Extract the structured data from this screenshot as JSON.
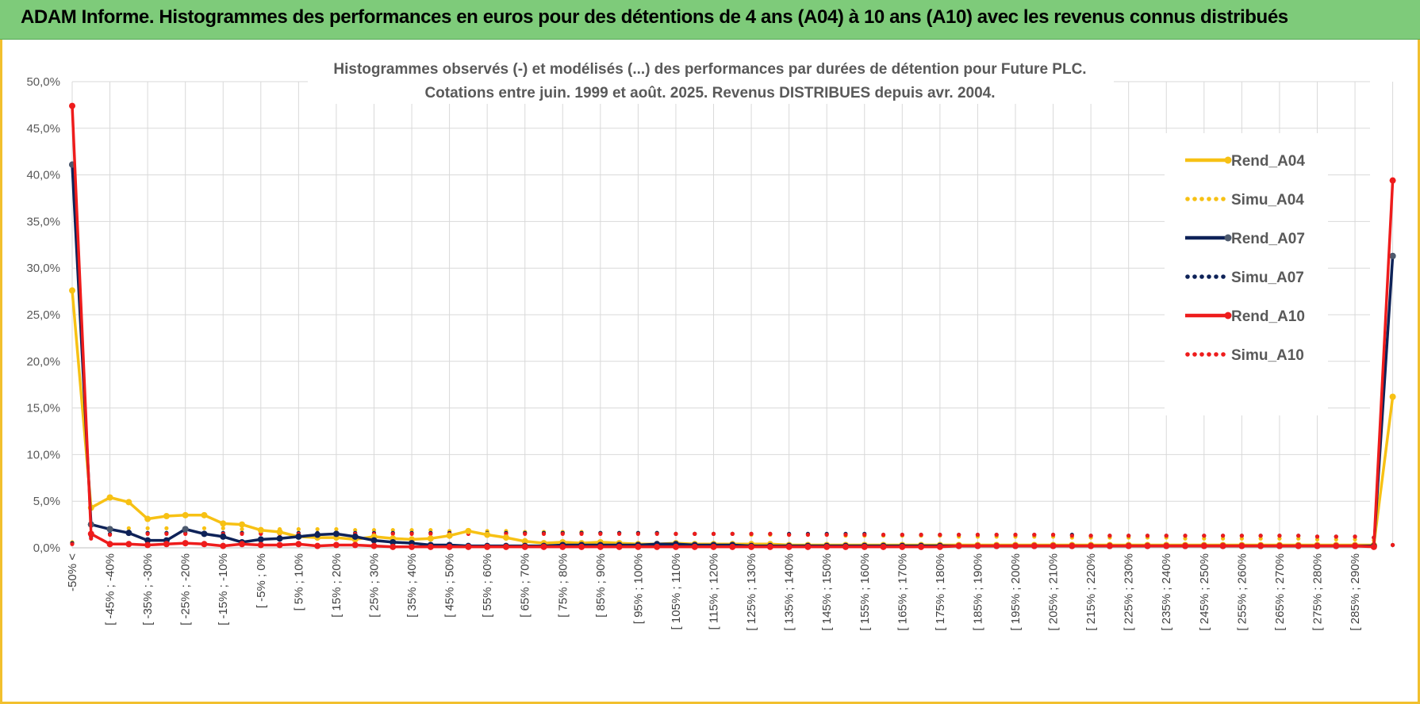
{
  "header": {
    "title": "ADAM Informe. Histogrammes des performances en euros pour des détentions de 4 ans (A04) à 10 ans (A10) avec les revenus connus distribués"
  },
  "chart_data": {
    "type": "line",
    "title_line1": "Histogrammes observés (-) et modélisés (...) des performances par durées de détention pour Future PLC.",
    "title_line2": "Cotations entre juin. 1999 et août. 2025. Revenus DISTRIBUES depuis avr. 2004.",
    "ylim": [
      0,
      50
    ],
    "yticks": [
      "0,0%",
      "5,0%",
      "10,0%",
      "15,0%",
      "20,0%",
      "25,0%",
      "30,0%",
      "35,0%",
      "40,0%",
      "45,0%",
      "50,0%"
    ],
    "y_unit": "%",
    "grid": true,
    "legend_position": "right",
    "x_tick_labels": [
      "-50% <",
      "[ -45% ; -40%",
      "[ -35% ; -30%",
      "[ -25% ; -20%",
      "[ -15% ; -10%",
      "[ -5% ; 0%",
      "[ 5% ; 10%",
      "[ 15% ; 20%",
      "[ 25% ; 30%",
      "[ 35% ; 40%",
      "[ 45% ; 50%",
      "[ 55% ; 60%",
      "[ 65% ; 70%",
      "[ 75% ; 80%",
      "[ 85% ; 90%",
      "[ 95% ; 100%",
      "[ 105% ; 110%",
      "[ 115% ; 120%",
      "[ 125% ; 130%",
      "[ 135% ; 140%",
      "[ 145% ; 150%",
      "[ 155% ; 160%",
      "[ 165% ; 170%",
      "[ 175% ; 180%",
      "[ 185% ; 190%",
      "[ 195% ; 200%",
      "[ 205% ; 210%",
      "[ 215% ; 220%",
      "[ 225% ; 230%",
      "[ 235% ; 240%",
      "[ 245% ; 250%",
      "[ 255% ; 260%",
      "[ 265% ; 270%",
      "[ 275% ; 280%",
      "[ 285% ; 290%"
    ],
    "series": [
      {
        "name": "Rend_A04",
        "style": "solid",
        "color": "#f7c114",
        "values": [
          27.6,
          4.3,
          5.4,
          4.9,
          3.1,
          3.4,
          3.5,
          3.5,
          2.6,
          2.5,
          1.9,
          1.7,
          1.2,
          1.1,
          1.1,
          0.9,
          1.2,
          1.0,
          0.9,
          1.0,
          1.3,
          1.8,
          1.4,
          1.1,
          0.7,
          0.5,
          0.6,
          0.5,
          0.6,
          0.5,
          0.4,
          0.4,
          0.5,
          0.4,
          0.4,
          0.4,
          0.4,
          0.4,
          0.3,
          0.3,
          0.3,
          0.3,
          0.3,
          0.3,
          0.3,
          0.3,
          0.3,
          0.3,
          0.3,
          0.3,
          0.3,
          0.3,
          0.3,
          0.3,
          0.3,
          0.3,
          0.3,
          0.3,
          0.3,
          0.3,
          0.3,
          0.3,
          0.3,
          0.3,
          0.3,
          0.3,
          0.3,
          0.3,
          0.3,
          0.3,
          16.2
        ]
      },
      {
        "name": "Simu_A04",
        "style": "dotted",
        "color": "#f7c114",
        "values": [
          0.6,
          1.6,
          2.1,
          2.1,
          2.1,
          2.1,
          2.1,
          2.1,
          2.1,
          2.0,
          2.0,
          2.0,
          2.0,
          2.0,
          2.0,
          1.9,
          1.9,
          1.9,
          1.9,
          1.9,
          1.8,
          1.8,
          1.8,
          1.8,
          1.7,
          1.7,
          1.7,
          1.7,
          1.6,
          1.6,
          1.6,
          1.6,
          1.5,
          1.5,
          1.5,
          1.5,
          1.4,
          1.4,
          1.4,
          1.4,
          1.4,
          1.3,
          1.3,
          1.3,
          1.3,
          1.3,
          1.3,
          1.2,
          1.2,
          1.2,
          1.2,
          1.2,
          1.2,
          1.1,
          1.1,
          1.1,
          1.1,
          1.1,
          1.1,
          1.0,
          1.0,
          1.0,
          1.0,
          1.0,
          1.0,
          1.0,
          0.9,
          0.9,
          0.9,
          0.8,
          0.3
        ]
      },
      {
        "name": "Rend_A07",
        "style": "solid",
        "color": "#0e2258",
        "values": [
          41.1,
          2.5,
          2.0,
          1.6,
          0.8,
          0.8,
          2.0,
          1.5,
          1.2,
          0.6,
          0.9,
          1.0,
          1.2,
          1.4,
          1.5,
          1.2,
          0.8,
          0.6,
          0.5,
          0.3,
          0.3,
          0.2,
          0.2,
          0.2,
          0.2,
          0.2,
          0.3,
          0.3,
          0.3,
          0.3,
          0.3,
          0.4,
          0.4,
          0.3,
          0.3,
          0.3,
          0.2,
          0.2,
          0.2,
          0.2,
          0.2,
          0.2,
          0.2,
          0.2,
          0.2,
          0.2,
          0.2,
          0.2,
          0.2,
          0.2,
          0.2,
          0.2,
          0.2,
          0.2,
          0.2,
          0.2,
          0.2,
          0.2,
          0.2,
          0.2,
          0.2,
          0.2,
          0.2,
          0.2,
          0.2,
          0.2,
          0.2,
          0.2,
          0.2,
          0.2,
          31.3
        ]
      },
      {
        "name": "Simu_A07",
        "style": "dotted",
        "color": "#0e2258",
        "values": [
          0.5,
          1.2,
          1.5,
          1.6,
          1.6,
          1.6,
          1.6,
          1.6,
          1.6,
          1.6,
          1.6,
          1.6,
          1.6,
          1.6,
          1.6,
          1.6,
          1.6,
          1.6,
          1.6,
          1.6,
          1.6,
          1.6,
          1.6,
          1.6,
          1.6,
          1.6,
          1.6,
          1.6,
          1.6,
          1.6,
          1.6,
          1.6,
          1.5,
          1.5,
          1.5,
          1.5,
          1.5,
          1.5,
          1.5,
          1.5,
          1.5,
          1.5,
          1.5,
          1.4,
          1.4,
          1.4,
          1.4,
          1.4,
          1.4,
          1.4,
          1.4,
          1.4,
          1.4,
          1.4,
          1.3,
          1.3,
          1.3,
          1.3,
          1.3,
          1.3,
          1.3,
          1.3,
          1.3,
          1.3,
          1.3,
          1.3,
          1.2,
          1.2,
          1.2,
          1.1,
          0.3
        ]
      },
      {
        "name": "Rend_A10",
        "style": "solid",
        "color": "#ee1c1c",
        "values": [
          47.4,
          1.5,
          0.4,
          0.4,
          0.3,
          0.4,
          0.5,
          0.4,
          0.2,
          0.4,
          0.3,
          0.3,
          0.4,
          0.2,
          0.3,
          0.3,
          0.2,
          0.1,
          0.1,
          0.1,
          0.1,
          0.1,
          0.1,
          0.1,
          0.1,
          0.1,
          0.1,
          0.1,
          0.1,
          0.1,
          0.1,
          0.1,
          0.1,
          0.1,
          0.1,
          0.1,
          0.1,
          0.1,
          0.1,
          0.1,
          0.1,
          0.1,
          0.1,
          0.1,
          0.1,
          0.1,
          0.1,
          0.2,
          0.2,
          0.2,
          0.2,
          0.2,
          0.2,
          0.2,
          0.2,
          0.2,
          0.2,
          0.2,
          0.2,
          0.2,
          0.2,
          0.2,
          0.2,
          0.2,
          0.2,
          0.2,
          0.2,
          0.2,
          0.2,
          0.1,
          39.4
        ]
      },
      {
        "name": "Simu_A10",
        "style": "dotted",
        "color": "#ee1c1c",
        "values": [
          0.4,
          1.0,
          1.4,
          1.5,
          1.5,
          1.5,
          1.5,
          1.5,
          1.5,
          1.5,
          1.5,
          1.5,
          1.5,
          1.5,
          1.5,
          1.5,
          1.5,
          1.5,
          1.5,
          1.5,
          1.5,
          1.5,
          1.5,
          1.5,
          1.5,
          1.5,
          1.5,
          1.5,
          1.5,
          1.5,
          1.5,
          1.5,
          1.5,
          1.5,
          1.5,
          1.5,
          1.5,
          1.5,
          1.4,
          1.4,
          1.4,
          1.4,
          1.4,
          1.4,
          1.4,
          1.4,
          1.4,
          1.4,
          1.4,
          1.4,
          1.4,
          1.4,
          1.4,
          1.3,
          1.3,
          1.3,
          1.3,
          1.3,
          1.3,
          1.3,
          1.3,
          1.3,
          1.3,
          1.3,
          1.3,
          1.3,
          1.2,
          1.2,
          1.2,
          1.1,
          0.3
        ]
      }
    ]
  }
}
